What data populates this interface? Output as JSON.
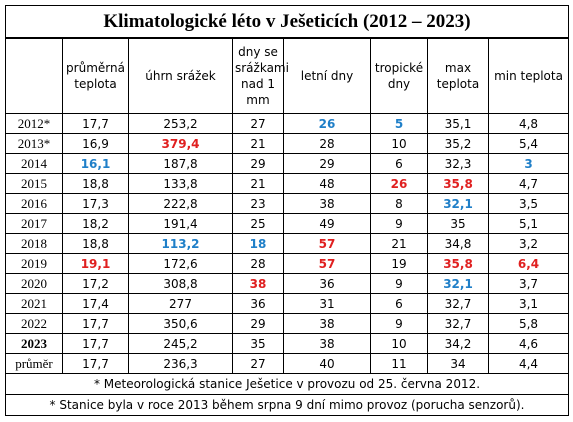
{
  "title": "Klimatologické léto v Ješeticích (2012 – 2023)",
  "header": [
    "",
    "průměrná teplota",
    "úhrn srážek",
    "dny se srážkami nad 1 mm",
    "letní dny",
    "tropické dny",
    "max teplota",
    "min teplota"
  ],
  "rows": [
    [
      "2012*",
      "17,7",
      "253,2",
      "27",
      "26",
      "5",
      "35,1",
      "4,8"
    ],
    [
      "2013*",
      "16,9",
      "379,4",
      "21",
      "28",
      "10",
      "35,2",
      "5,4"
    ],
    [
      "2014",
      "16,1",
      "187,8",
      "29",
      "29",
      "6",
      "32,3",
      "3"
    ],
    [
      "2015",
      "18,8",
      "133,8",
      "21",
      "48",
      "26",
      "35,8",
      "4,7"
    ],
    [
      "2016",
      "17,3",
      "222,8",
      "23",
      "38",
      "8",
      "32,1",
      "3,5"
    ],
    [
      "2017",
      "18,2",
      "191,4",
      "25",
      "49",
      "9",
      "35",
      "5,1"
    ],
    [
      "2018",
      "18,8",
      "113,2",
      "18",
      "57",
      "21",
      "34,8",
      "3,2"
    ],
    [
      "2019",
      "19,1",
      "172,6",
      "28",
      "57",
      "19",
      "35,8",
      "6,4"
    ],
    [
      "2020",
      "17,2",
      "308,8",
      "38",
      "36",
      "9",
      "32,1",
      "3,7"
    ],
    [
      "2021",
      "17,4",
      "277",
      "36",
      "31",
      "6",
      "32,7",
      "3,1"
    ],
    [
      "2022",
      "17,7",
      "350,6",
      "29",
      "38",
      "9",
      "32,7",
      "5,8"
    ],
    [
      "2023",
      "17,7",
      "245,2",
      "35",
      "38",
      "10",
      "34,2",
      "4,6"
    ],
    [
      "průměr",
      "17,7",
      "236,3",
      "27",
      "40",
      "11",
      "34",
      "4,4"
    ]
  ],
  "footnotes": [
    "* Meteorologická stanice Ješetice v provozu od 25. června 2012.",
    "* Stanice byla v roce 2013 během srpna 9 dní mimo provoz (porucha senzorů)."
  ]
}
